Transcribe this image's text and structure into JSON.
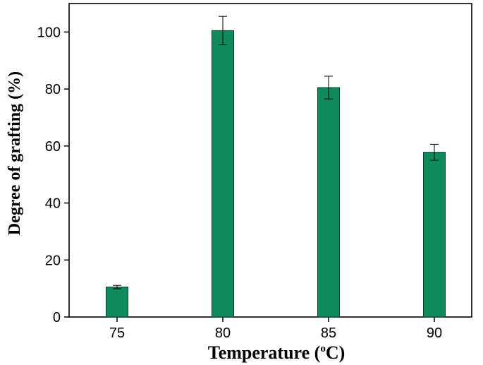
{
  "chart_data": {
    "type": "bar",
    "xlabel": "Temperature (°C)",
    "xlabel_parts": {
      "before": "Temperature (",
      "superscript": "o",
      "after": "C)"
    },
    "ylabel": "Degree of grafting (%)",
    "categories": [
      "75",
      "80",
      "85",
      "90"
    ],
    "values": [
      10.5,
      100.5,
      80.5,
      57.8
    ],
    "errors": [
      0.6,
      5.0,
      4.0,
      2.8
    ],
    "ylim": [
      0,
      110
    ],
    "yticks": [
      0,
      20,
      40,
      60,
      80,
      100
    ],
    "grid": false,
    "legend": "none",
    "bar_color": "#0e8a5c",
    "bar_edge_color": "#0a3d26"
  }
}
